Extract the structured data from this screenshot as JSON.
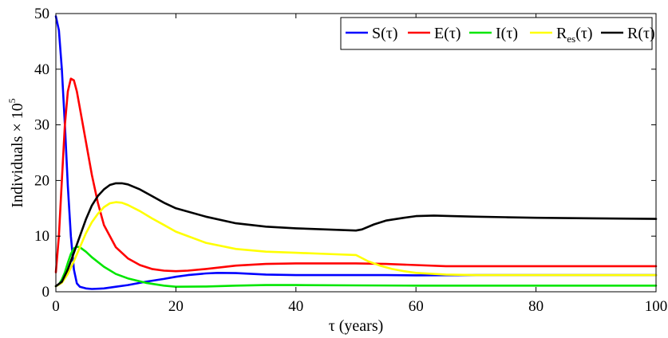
{
  "chart_data": {
    "type": "line",
    "xlabel": "τ (years)",
    "ylabel": "Individuals × 10",
    "ylabel_exponent": "5",
    "xlim": [
      0,
      100
    ],
    "ylim": [
      0,
      50
    ],
    "x_ticks": [
      0,
      20,
      40,
      60,
      80,
      100
    ],
    "y_ticks": [
      0,
      10,
      20,
      30,
      40,
      50
    ],
    "legend_position": "top-right",
    "series": [
      {
        "name": "S(τ)",
        "name_main": "S",
        "name_sub": "",
        "name_tail": "(τ)",
        "color": "#0000ff",
        "points": [
          [
            0,
            49.5
          ],
          [
            0.5,
            47
          ],
          [
            1,
            40
          ],
          [
            1.5,
            30
          ],
          [
            2,
            19
          ],
          [
            2.5,
            10
          ],
          [
            3,
            4
          ],
          [
            3.5,
            1.5
          ],
          [
            4,
            0.9
          ],
          [
            5,
            0.6
          ],
          [
            6,
            0.5
          ],
          [
            8,
            0.6
          ],
          [
            10,
            0.9
          ],
          [
            12,
            1.2
          ],
          [
            15,
            1.8
          ],
          [
            18,
            2.3
          ],
          [
            20,
            2.7
          ],
          [
            22,
            3.0
          ],
          [
            25,
            3.3
          ],
          [
            27,
            3.4
          ],
          [
            30,
            3.35
          ],
          [
            33,
            3.2
          ],
          [
            35,
            3.1
          ],
          [
            40,
            3.0
          ],
          [
            50,
            3.0
          ],
          [
            55,
            3.0
          ],
          [
            60,
            2.95
          ],
          [
            70,
            3.0
          ],
          [
            80,
            3.0
          ],
          [
            90,
            3.0
          ],
          [
            100,
            3.0
          ]
        ]
      },
      {
        "name": "E(τ)",
        "name_main": "E",
        "name_sub": "",
        "name_tail": "(τ)",
        "color": "#ff0000",
        "points": [
          [
            0,
            3.5
          ],
          [
            0.5,
            10
          ],
          [
            1,
            20
          ],
          [
            1.5,
            30
          ],
          [
            2,
            36
          ],
          [
            2.5,
            38.3
          ],
          [
            3,
            38
          ],
          [
            3.5,
            36
          ],
          [
            4,
            33
          ],
          [
            5,
            27
          ],
          [
            6,
            21
          ],
          [
            7,
            16
          ],
          [
            8,
            12
          ],
          [
            10,
            8
          ],
          [
            12,
            6
          ],
          [
            14,
            4.8
          ],
          [
            16,
            4.1
          ],
          [
            18,
            3.8
          ],
          [
            20,
            3.7
          ],
          [
            22,
            3.8
          ],
          [
            25,
            4.1
          ],
          [
            30,
            4.7
          ],
          [
            35,
            5.0
          ],
          [
            40,
            5.1
          ],
          [
            50,
            5.1
          ],
          [
            55,
            5.0
          ],
          [
            60,
            4.8
          ],
          [
            65,
            4.6
          ],
          [
            70,
            4.6
          ],
          [
            80,
            4.6
          ],
          [
            90,
            4.6
          ],
          [
            100,
            4.6
          ]
        ]
      },
      {
        "name": "I(τ)",
        "name_main": "I",
        "name_sub": "",
        "name_tail": "(τ)",
        "color": "#00e600",
        "points": [
          [
            0,
            1
          ],
          [
            0.5,
            1.3
          ],
          [
            1,
            2.2
          ],
          [
            1.5,
            3.5
          ],
          [
            2,
            5.2
          ],
          [
            2.5,
            6.8
          ],
          [
            3,
            7.8
          ],
          [
            3.5,
            8.1
          ],
          [
            4,
            8
          ],
          [
            5,
            7.2
          ],
          [
            6,
            6.2
          ],
          [
            8,
            4.5
          ],
          [
            10,
            3.2
          ],
          [
            12,
            2.4
          ],
          [
            15,
            1.6
          ],
          [
            18,
            1.1
          ],
          [
            20,
            0.9
          ],
          [
            25,
            0.95
          ],
          [
            30,
            1.1
          ],
          [
            35,
            1.2
          ],
          [
            40,
            1.2
          ],
          [
            50,
            1.15
          ],
          [
            60,
            1.1
          ],
          [
            70,
            1.1
          ],
          [
            80,
            1.1
          ],
          [
            90,
            1.1
          ],
          [
            100,
            1.1
          ]
        ]
      },
      {
        "name": "R_es(τ)",
        "name_main": "R",
        "name_sub": "es",
        "name_tail": "(τ)",
        "color": "#ffff00",
        "points": [
          [
            0,
            1
          ],
          [
            1,
            1.6
          ],
          [
            2,
            3.2
          ],
          [
            3,
            5.5
          ],
          [
            4,
            8
          ],
          [
            5,
            10.5
          ],
          [
            6,
            12.5
          ],
          [
            7,
            14
          ],
          [
            8,
            15.2
          ],
          [
            9,
            15.9
          ],
          [
            10,
            16.1
          ],
          [
            11,
            16
          ],
          [
            12,
            15.6
          ],
          [
            14,
            14.5
          ],
          [
            16,
            13.2
          ],
          [
            18,
            12
          ],
          [
            20,
            10.8
          ],
          [
            25,
            8.8
          ],
          [
            30,
            7.7
          ],
          [
            35,
            7.2
          ],
          [
            40,
            7.0
          ],
          [
            45,
            6.8
          ],
          [
            50,
            6.6
          ],
          [
            52,
            5.5
          ],
          [
            54,
            4.7
          ],
          [
            56,
            4.1
          ],
          [
            58,
            3.7
          ],
          [
            60,
            3.4
          ],
          [
            65,
            3.1
          ],
          [
            70,
            3.0
          ],
          [
            80,
            3.0
          ],
          [
            90,
            3.0
          ],
          [
            100,
            3.0
          ]
        ]
      },
      {
        "name": "R(τ)",
        "name_main": "R",
        "name_sub": "",
        "name_tail": "(τ)",
        "color": "#000000",
        "points": [
          [
            0,
            1
          ],
          [
            1,
            1.8
          ],
          [
            2,
            4
          ],
          [
            3,
            7
          ],
          [
            4,
            10
          ],
          [
            5,
            13
          ],
          [
            6,
            15.5
          ],
          [
            7,
            17.2
          ],
          [
            8,
            18.4
          ],
          [
            9,
            19.2
          ],
          [
            10,
            19.5
          ],
          [
            11,
            19.5
          ],
          [
            12,
            19.3
          ],
          [
            14,
            18.4
          ],
          [
            16,
            17.2
          ],
          [
            18,
            16.0
          ],
          [
            20,
            15.0
          ],
          [
            25,
            13.5
          ],
          [
            30,
            12.3
          ],
          [
            35,
            11.7
          ],
          [
            40,
            11.4
          ],
          [
            45,
            11.2
          ],
          [
            50,
            11.0
          ],
          [
            51,
            11.2
          ],
          [
            53,
            12.1
          ],
          [
            55,
            12.8
          ],
          [
            58,
            13.3
          ],
          [
            60,
            13.6
          ],
          [
            63,
            13.7
          ],
          [
            66,
            13.6
          ],
          [
            70,
            13.5
          ],
          [
            75,
            13.4
          ],
          [
            80,
            13.3
          ],
          [
            90,
            13.2
          ],
          [
            100,
            13.1
          ]
        ]
      }
    ]
  }
}
